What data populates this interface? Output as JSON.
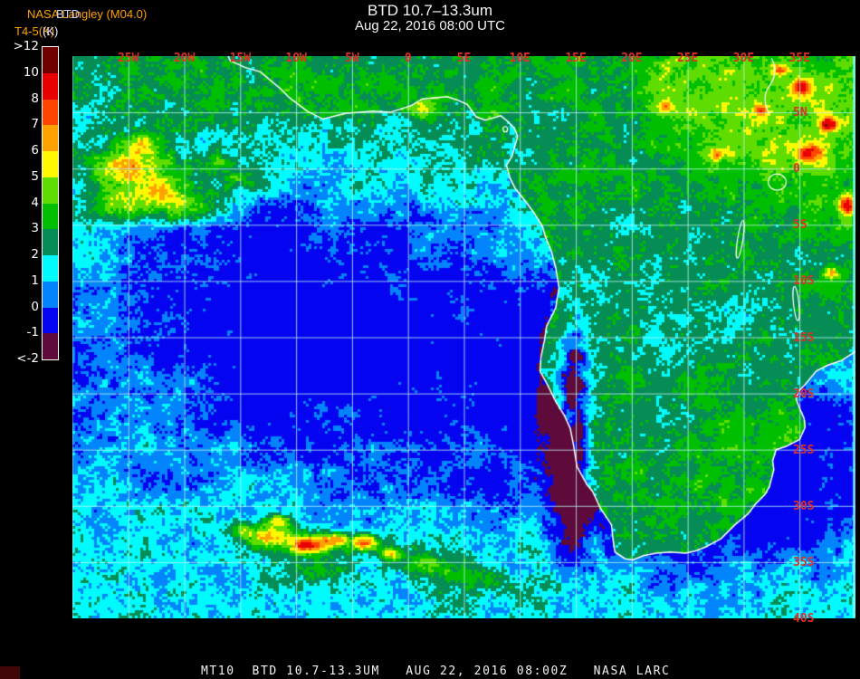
{
  "header": {
    "agency": "NASA Langley (M04.0)",
    "product_overlay": "BTD",
    "units": "T4-5(K)",
    "units_overlay": "(K)"
  },
  "title": {
    "line1": "BTD 10.7–13.3um",
    "line2": "Aug 22, 2016 08:00 UTC"
  },
  "colorbar": {
    "tick_labels": [
      ">12",
      "10",
      "8",
      "7",
      "6",
      "5",
      "4",
      "3",
      "2",
      "1",
      "0",
      "-1",
      "<-2"
    ],
    "segment_colors": [
      "#700000",
      "#E80000",
      "#FF4500",
      "#FFA200",
      "#FFF800",
      "#5FDC00",
      "#00BE00",
      "#058D55",
      "#00FBFF",
      "#0284FD",
      "#0404F0",
      "#5E0A3A"
    ]
  },
  "map": {
    "lon_ticks": [
      {
        "label": "25W",
        "deg": -25
      },
      {
        "label": "20W",
        "deg": -20
      },
      {
        "label": "15W",
        "deg": -15
      },
      {
        "label": "10W",
        "deg": -10
      },
      {
        "label": "5W",
        "deg": -5
      },
      {
        "label": "0",
        "deg": 0
      },
      {
        "label": "5E",
        "deg": 5
      },
      {
        "label": "10E",
        "deg": 10
      },
      {
        "label": "15E",
        "deg": 15
      },
      {
        "label": "20E",
        "deg": 20
      },
      {
        "label": "25E",
        "deg": 25
      },
      {
        "label": "30E",
        "deg": 30
      },
      {
        "label": "35E",
        "deg": 35
      }
    ],
    "lat_ticks": [
      {
        "label": "5N",
        "deg": 5
      },
      {
        "label": "0",
        "deg": 0
      },
      {
        "label": "5S",
        "deg": -5
      },
      {
        "label": "10S",
        "deg": -10
      },
      {
        "label": "15S",
        "deg": -15
      },
      {
        "label": "20S",
        "deg": -20
      },
      {
        "label": "25S",
        "deg": -25
      },
      {
        "label": "30S",
        "deg": -30
      },
      {
        "label": "35S",
        "deg": -35
      },
      {
        "label": "40S",
        "deg": -40
      }
    ],
    "tick_color": "#E03028",
    "grid_color": "rgba(185,245,240,0.8)",
    "coast_color": "#FFFFFF"
  },
  "footer": {
    "text": "MT10  BTD 10.7-13.3UM   AUG 22, 2016 08:00Z   NASA LARC"
  }
}
